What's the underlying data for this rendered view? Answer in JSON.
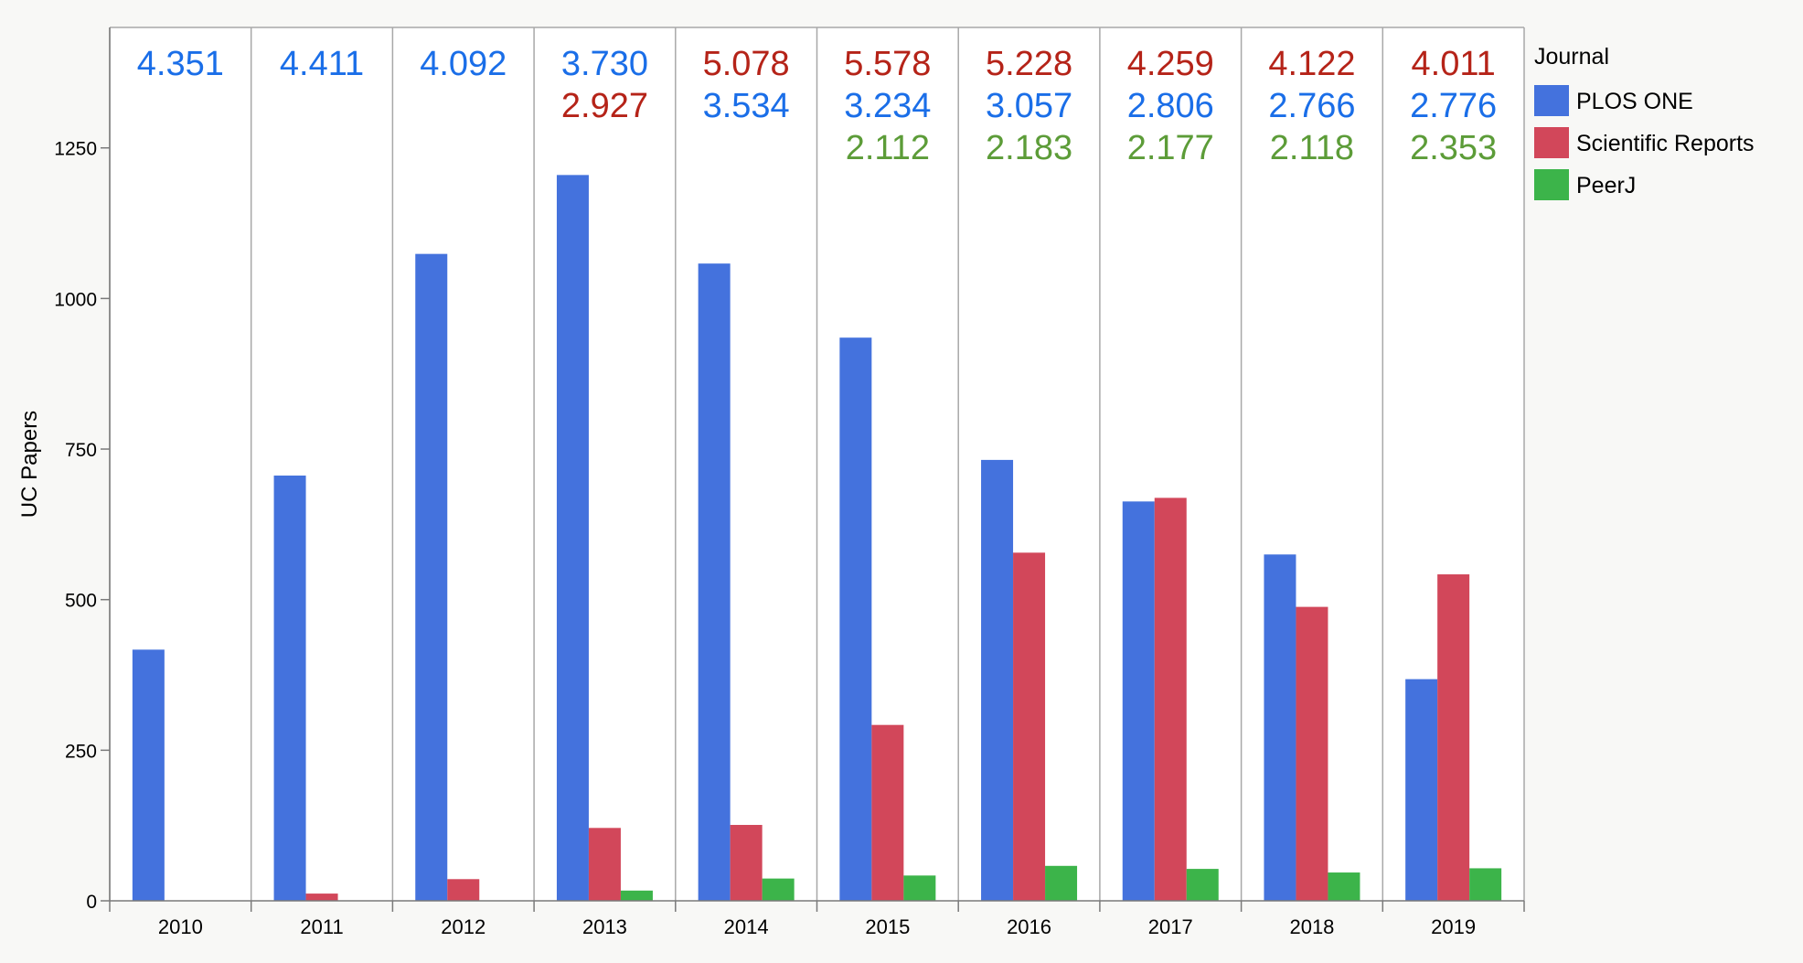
{
  "chart_data": {
    "type": "bar",
    "title": "",
    "xlabel": "",
    "ylabel": "UC Papers",
    "ylim": [
      0,
      1450
    ],
    "yticks": [
      0,
      250,
      500,
      750,
      1000,
      1250
    ],
    "categories": [
      "2010",
      "2011",
      "2012",
      "2013",
      "2014",
      "2015",
      "2016",
      "2017",
      "2018",
      "2019"
    ],
    "legend": {
      "title": "Journal",
      "placement": "right"
    },
    "grid": false,
    "series": [
      {
        "name": "PLOS ONE",
        "color": "#4472dd",
        "label_color": "#1a6ee8",
        "values": [
          417,
          706,
          1074,
          1205,
          1058,
          935,
          732,
          663,
          575,
          368
        ]
      },
      {
        "name": "Scientific Reports",
        "color": "#d2475a",
        "label_color": "#b52318",
        "values": [
          0,
          12,
          36,
          121,
          126,
          292,
          578,
          669,
          488,
          542
        ]
      },
      {
        "name": "PeerJ",
        "color": "#3cb44a",
        "label_color": "#5c9c38",
        "values": [
          0,
          0,
          0,
          17,
          37,
          42,
          58,
          53,
          47,
          54
        ]
      }
    ],
    "annotations": [
      {
        "category": "2010",
        "lines": [
          {
            "text": "4.351",
            "series": "PLOS ONE"
          }
        ]
      },
      {
        "category": "2011",
        "lines": [
          {
            "text": "4.411",
            "series": "PLOS ONE"
          }
        ]
      },
      {
        "category": "2012",
        "lines": [
          {
            "text": "4.092",
            "series": "PLOS ONE"
          }
        ]
      },
      {
        "category": "2013",
        "lines": [
          {
            "text": "3.730",
            "series": "PLOS ONE"
          },
          {
            "text": "2.927",
            "series": "Scientific Reports"
          }
        ]
      },
      {
        "category": "2014",
        "lines": [
          {
            "text": "5.078",
            "series": "Scientific Reports"
          },
          {
            "text": "3.534",
            "series": "PLOS ONE"
          }
        ]
      },
      {
        "category": "2015",
        "lines": [
          {
            "text": "5.578",
            "series": "Scientific Reports"
          },
          {
            "text": "3.234",
            "series": "PLOS ONE"
          },
          {
            "text": "2.112",
            "series": "PeerJ"
          }
        ]
      },
      {
        "category": "2016",
        "lines": [
          {
            "text": "5.228",
            "series": "Scientific Reports"
          },
          {
            "text": "3.057",
            "series": "PLOS ONE"
          },
          {
            "text": "2.183",
            "series": "PeerJ"
          }
        ]
      },
      {
        "category": "2017",
        "lines": [
          {
            "text": "4.259",
            "series": "Scientific Reports"
          },
          {
            "text": "2.806",
            "series": "PLOS ONE"
          },
          {
            "text": "2.177",
            "series": "PeerJ"
          }
        ]
      },
      {
        "category": "2018",
        "lines": [
          {
            "text": "4.122",
            "series": "Scientific Reports"
          },
          {
            "text": "2.766",
            "series": "PLOS ONE"
          },
          {
            "text": "2.118",
            "series": "PeerJ"
          }
        ]
      },
      {
        "category": "2019",
        "lines": [
          {
            "text": "4.011",
            "series": "Scientific Reports"
          },
          {
            "text": "2.776",
            "series": "PLOS ONE"
          },
          {
            "text": "2.353",
            "series": "PeerJ"
          }
        ]
      }
    ]
  }
}
